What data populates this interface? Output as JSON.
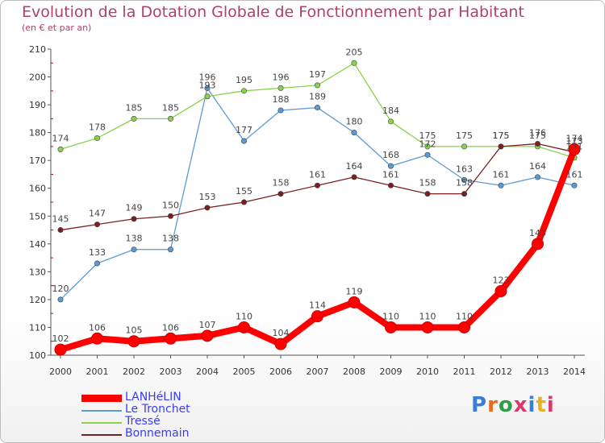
{
  "title": "Evolution de la Dotation Globale de Fonctionnement par Habitant",
  "subtitle": "(en € et par an)",
  "logo": {
    "text": "Proxiti",
    "colors": [
      "#3a7fd5",
      "#e86a1e",
      "#2f9e44",
      "#d93a6b",
      "#3a7fd5",
      "#e8b21e",
      "#d93a6b"
    ]
  },
  "chart_data": {
    "type": "line",
    "title": "Evolution de la Dotation Globale de Fonctionnement par Habitant",
    "subtitle": "(en € et par an)",
    "xlabel": "",
    "ylabel": "",
    "categories": [
      "2000",
      "2001",
      "2002",
      "2003",
      "2004",
      "2005",
      "2006",
      "2007",
      "2008",
      "2009",
      "2010",
      "2011",
      "2012",
      "2013",
      "2014"
    ],
    "yticks": [
      100,
      110,
      120,
      130,
      140,
      150,
      160,
      170,
      180,
      190,
      200,
      210
    ],
    "ylim": [
      100,
      210
    ],
    "grid": false,
    "legend_position": "bottom-left",
    "series": [
      {
        "name": "LANHéLIN",
        "color": "#ff0000",
        "emphasis": true,
        "values": [
          102,
          106,
          105,
          106,
          107,
          110,
          104,
          114,
          119,
          110,
          110,
          110,
          123,
          140,
          174
        ],
        "labels": [
          "102",
          "106",
          "105",
          "106",
          "107",
          "110",
          "104",
          "114",
          "119",
          "110",
          "110",
          "110",
          "123",
          "140",
          "174"
        ]
      },
      {
        "name": "Le Tronchet",
        "color": "#5a9bd5",
        "emphasis": false,
        "values": [
          120,
          133,
          138,
          138,
          196,
          177,
          188,
          189,
          180,
          168,
          172,
          163,
          161,
          164,
          161
        ],
        "labels": [
          "120",
          "133",
          "138",
          "138",
          "196",
          "177",
          "188",
          "189",
          "180",
          "168",
          "172",
          "163",
          "161",
          "164",
          "161"
        ]
      },
      {
        "name": "Tressé",
        "color": "#88d34a",
        "emphasis": false,
        "values": [
          174,
          178,
          185,
          185,
          193,
          195,
          196,
          197,
          205,
          184,
          175,
          175,
          175,
          175,
          171
        ],
        "labels": [
          "174",
          "178",
          "185",
          "185",
          "193",
          "195",
          "196",
          "197",
          "205",
          "184",
          "175",
          "175",
          "175",
          "175",
          "171"
        ]
      },
      {
        "name": "Bonnemain",
        "color": "#7a1f1f",
        "emphasis": false,
        "values": [
          145,
          147,
          149,
          150,
          153,
          155,
          158,
          161,
          164,
          161,
          158,
          158,
          175,
          176,
          173
        ],
        "labels": [
          "145",
          "147",
          "149",
          "150",
          "153",
          "155",
          "158",
          "161",
          "164",
          "161",
          "158",
          "158",
          "175",
          "176",
          "173"
        ]
      }
    ]
  }
}
